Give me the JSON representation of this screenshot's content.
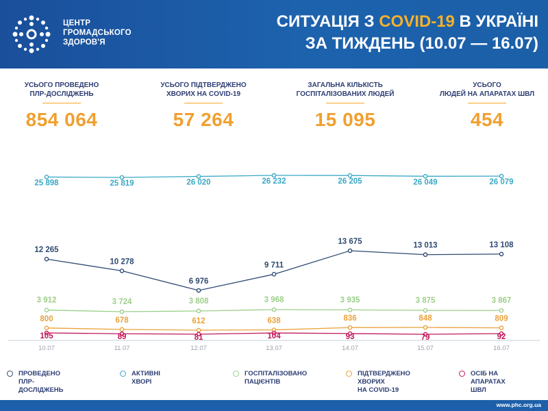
{
  "header": {
    "org_lines": [
      "ЦЕНТР",
      "ГРОМАДСЬКОГО",
      "ЗДОРОВ'Я"
    ],
    "title_line1_prefix": "СИТУАЦІЯ З ",
    "title_line1_highlight": "COVID-19",
    "title_line1_suffix": " В УКРАЇНІ",
    "title_line2": "ЗА ТИЖДЕНЬ (10.07 — 16.07)"
  },
  "stats": [
    {
      "label_line1": "УСЬОГО ПРОВЕДЕНО",
      "label_line2": "ПЛР-ДОСЛІДЖЕНЬ",
      "value": "854 064"
    },
    {
      "label_line1": "УСЬОГО ПІДТВЕРДЖЕНО",
      "label_line2": "ХВОРИХ НА COVID-19",
      "value": "57 264"
    },
    {
      "label_line1": "ЗАГАЛЬНА КІЛЬКІСТЬ",
      "label_line2": "ГОСПІТАЛІЗОВАНИХ ЛЮДЕЙ",
      "value": "15 095"
    },
    {
      "label_line1": "УСЬОГО",
      "label_line2": "ЛЮДЕЙ НА АПАРАТАХ ШВЛ",
      "value": "454"
    }
  ],
  "chart_data": {
    "type": "line",
    "x": [
      "10.07",
      "11.07",
      "12.07",
      "13.07",
      "14.07",
      "15.07",
      "16.07"
    ],
    "series": [
      {
        "key": "active",
        "color": "#3aa9c6",
        "values": [
          25898,
          25819,
          26020,
          26232,
          26205,
          26049,
          26079
        ],
        "labels": [
          "25 898",
          "25 819",
          "26 020",
          "26 232",
          "26 205",
          "26 049",
          "26 079"
        ]
      },
      {
        "key": "pcr",
        "color": "#2e4a72",
        "values": [
          12265,
          10278,
          6976,
          9711,
          13675,
          13013,
          13108
        ],
        "labels": [
          "12 265",
          "10 278",
          "6 976",
          "9 711",
          "13 675",
          "13 013",
          "13 108"
        ]
      },
      {
        "key": "hosp",
        "color": "#9ccf8a",
        "values": [
          3912,
          3724,
          3808,
          3968,
          3935,
          3875,
          3867
        ],
        "labels": [
          "3 912",
          "3 724",
          "3 808",
          "3 968",
          "3 935",
          "3 875",
          "3 867"
        ]
      },
      {
        "key": "confirmed",
        "color": "#e9a23b",
        "values": [
          800,
          678,
          612,
          638,
          836,
          848,
          809
        ],
        "labels": [
          "800",
          "678",
          "612",
          "638",
          "836",
          "848",
          "809"
        ]
      },
      {
        "key": "ventilators",
        "color": "#c2185b",
        "values": [
          105,
          89,
          81,
          104,
          93,
          79,
          92
        ],
        "labels": [
          "105",
          "89",
          "81",
          "104",
          "93",
          "79",
          "92"
        ]
      }
    ],
    "legend": [
      {
        "key": "pcr",
        "line1": "ПРОВЕДЕНО",
        "line2": "ПЛР-ДОСЛІДЖЕНЬ",
        "color": "#2e4a72"
      },
      {
        "key": "active",
        "line1": "АКТИВНІ",
        "line2": "ХВОРІ",
        "color": "#3aa9c6"
      },
      {
        "key": "hosp",
        "line1": "ГОСПІТАЛІЗОВАНО",
        "line2": "ПАЦІЄНТІВ",
        "color": "#9ccf8a"
      },
      {
        "key": "confirmed",
        "line1": "ПІДТВЕРДЖЕНО ХВОРИХ",
        "line2": "НА COVID-19",
        "color": "#e9a23b"
      },
      {
        "key": "ventilators",
        "line1": "ОСІБ НА АПАРАТАХ",
        "line2": "ШВЛ",
        "color": "#c2185b"
      }
    ],
    "legend_position": "bottom",
    "grid": false
  },
  "footer": {
    "url": "www.phc.org.ua"
  },
  "colors": {
    "header_blue": "#1d5fa8",
    "accent_orange": "#f5b12b",
    "stat_orange": "#f0a030",
    "text_navy": "#2d3d73"
  }
}
